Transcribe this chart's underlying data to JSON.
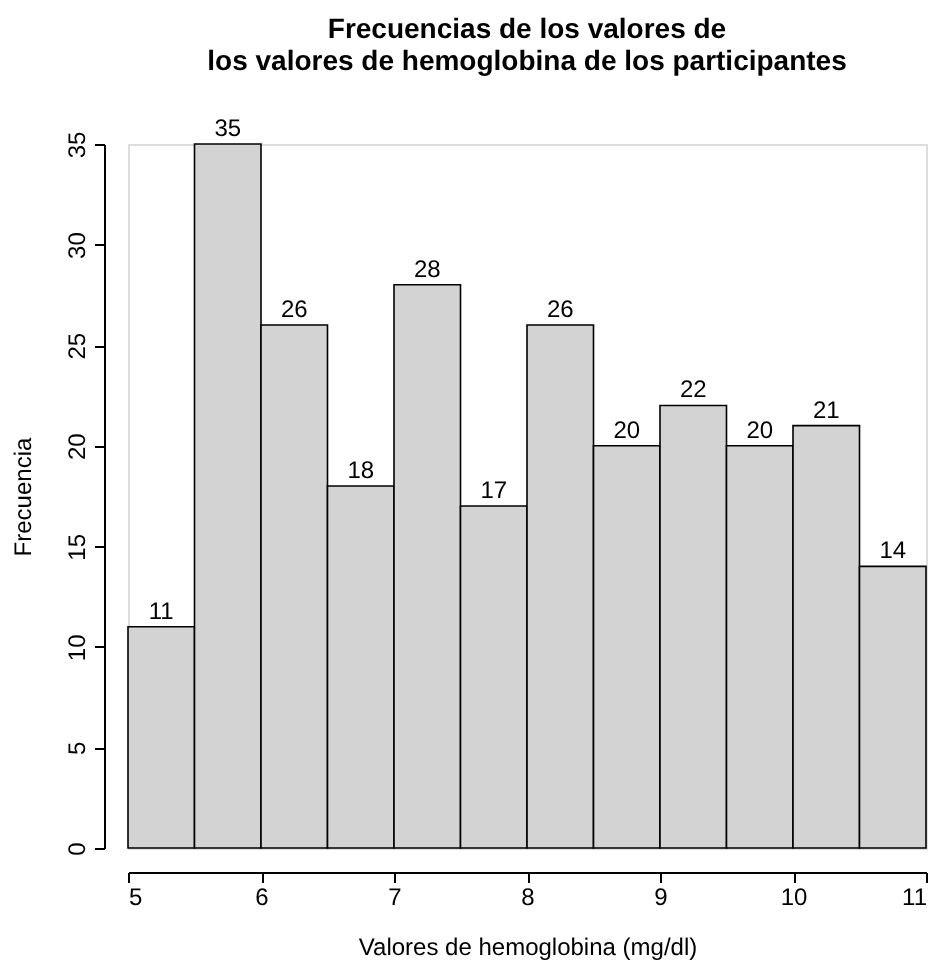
{
  "chart_data": {
    "type": "histogram",
    "title": "Frecuencias de los valores de\nlos valores de hemoglobina de los participantes",
    "xlabel": "Valores de hemoglobina (mg/dl)",
    "ylabel": "Frecuencia",
    "bins": [
      5,
      5.5,
      6,
      6.5,
      7,
      7.5,
      8,
      8.5,
      9,
      9.5,
      10,
      10.5,
      11
    ],
    "values": [
      11,
      35,
      26,
      18,
      28,
      17,
      26,
      20,
      22,
      20,
      21,
      14
    ],
    "color": "#d3d3d3",
    "data_labels": true,
    "grid": false,
    "xlim": [
      5,
      11
    ],
    "xticks": [
      5,
      6,
      7,
      8,
      9,
      10,
      11
    ],
    "ylim": [
      0,
      35
    ],
    "yticks": [
      0,
      5,
      10,
      15,
      20,
      25,
      30,
      35
    ]
  }
}
